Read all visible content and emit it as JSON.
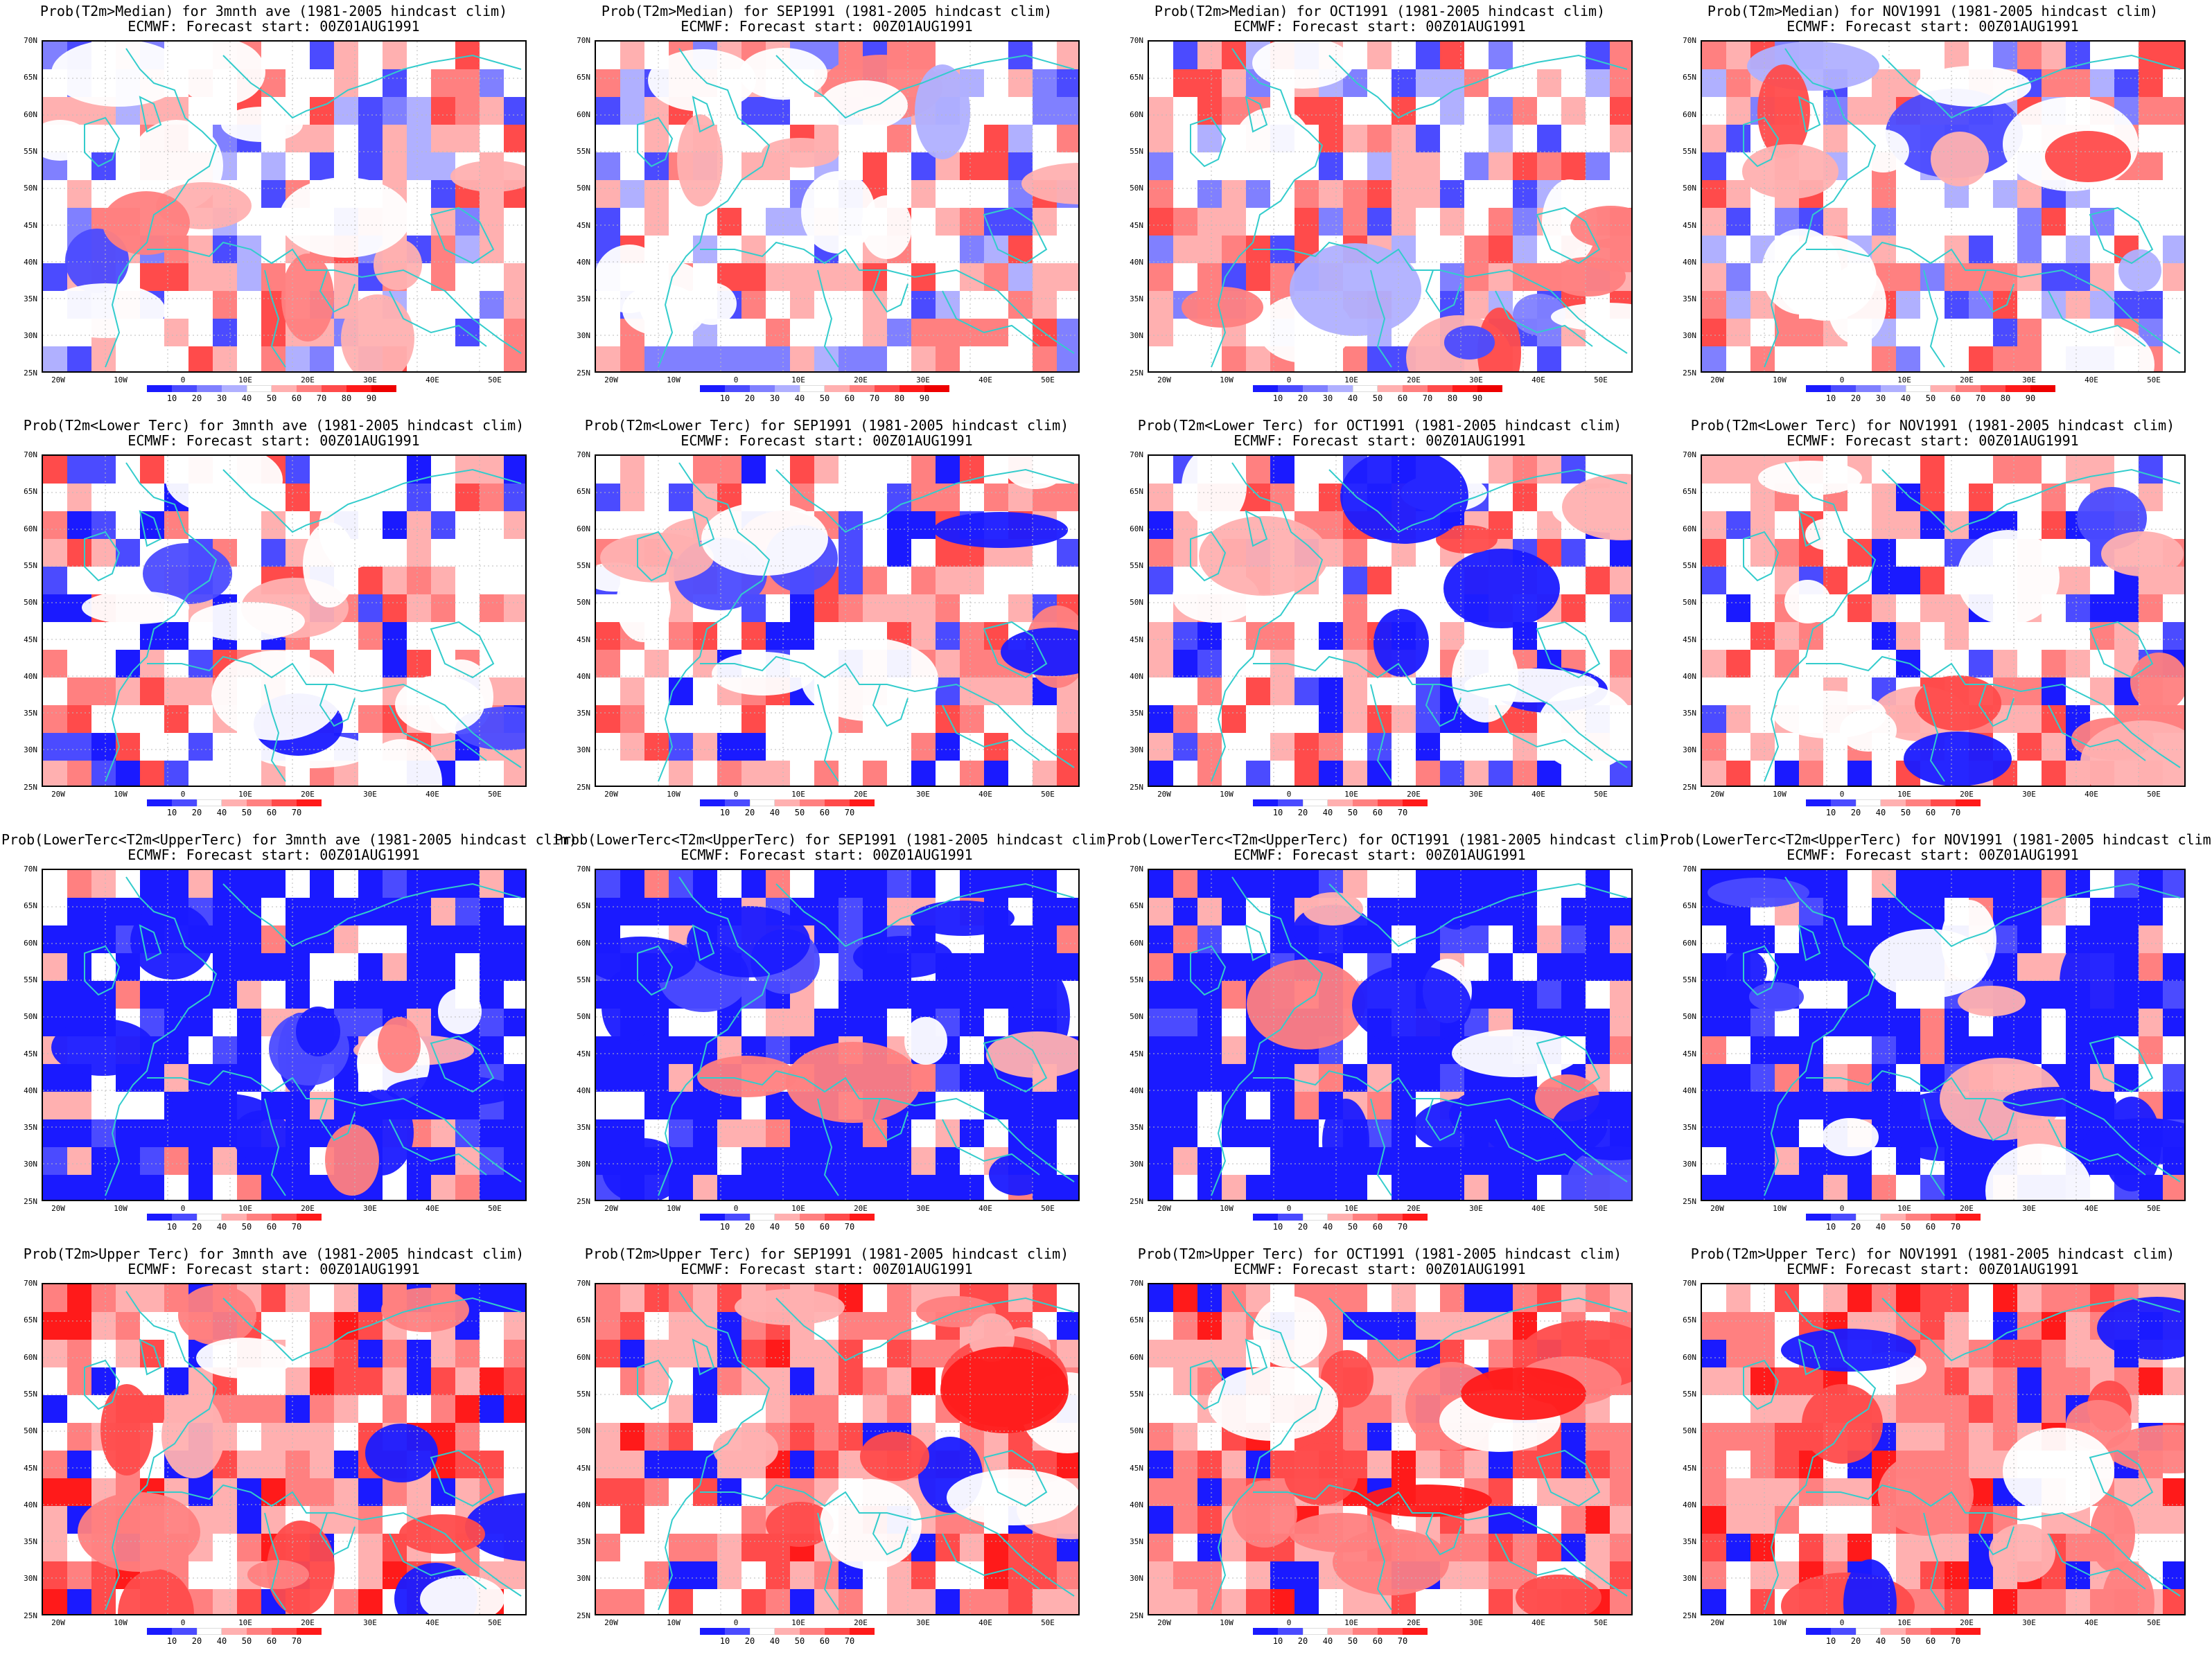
{
  "panels": [
    {
      "t1": "Prob(T2m>Median) for 3mnth ave (1981-2005 hindcast clim)",
      "t2": "ECMWF: Forecast start: 00Z01AUG1991",
      "bar": "median",
      "field": "m0"
    },
    {
      "t1": "Prob(T2m>Median) for SEP1991 (1981-2005 hindcast clim)",
      "t2": "ECMWF: Forecast start: 00Z01AUG1991",
      "bar": "median",
      "field": "m1"
    },
    {
      "t1": "Prob(T2m>Median) for OCT1991 (1981-2005 hindcast clim)",
      "t2": "ECMWF: Forecast start: 00Z01AUG1991",
      "bar": "median",
      "field": "m2"
    },
    {
      "t1": "Prob(T2m>Median) for NOV1991 (1981-2005 hindcast clim)",
      "t2": "ECMWF: Forecast start: 00Z01AUG1991",
      "bar": "median",
      "field": "m3"
    },
    {
      "t1": "Prob(T2m<Lower Terc) for 3mnth ave (1981-2005 hindcast clim)",
      "t2": "ECMWF: Forecast start: 00Z01AUG1991",
      "bar": "terc",
      "field": "l0"
    },
    {
      "t1": "Prob(T2m<Lower Terc) for SEP1991 (1981-2005 hindcast clim)",
      "t2": "ECMWF: Forecast start: 00Z01AUG1991",
      "bar": "terc",
      "field": "l1"
    },
    {
      "t1": "Prob(T2m<Lower Terc) for OCT1991 (1981-2005 hindcast clim)",
      "t2": "ECMWF: Forecast start: 00Z01AUG1991",
      "bar": "terc",
      "field": "l2"
    },
    {
      "t1": "Prob(T2m<Lower Terc) for NOV1991 (1981-2005 hindcast clim)",
      "t2": "ECMWF: Forecast start: 00Z01AUG1991",
      "bar": "terc",
      "field": "l3"
    },
    {
      "t1": "Prob(LowerTerc<T2m<UpperTerc) for 3mnth ave (1981-2005 hindcast clim)",
      "t2": "ECMWF: Forecast start: 00Z01AUG1991",
      "bar": "terc",
      "field": "c0"
    },
    {
      "t1": "Prob(LowerTerc<T2m<UpperTerc) for SEP1991 (1981-2005 hindcast clim)",
      "t2": "ECMWF: Forecast start: 00Z01AUG1991",
      "bar": "terc",
      "field": "c1"
    },
    {
      "t1": "Prob(LowerTerc<T2m<UpperTerc) for OCT1991 (1981-2005 hindcast clim)",
      "t2": "ECMWF: Forecast start: 00Z01AUG1991",
      "bar": "terc",
      "field": "c2"
    },
    {
      "t1": "Prob(LowerTerc<T2m<UpperTerc) for NOV1991 (1981-2005 hindcast clim)",
      "t2": "ECMWF: Forecast start: 00Z01AUG1991",
      "bar": "terc",
      "field": "c3"
    },
    {
      "t1": "Prob(T2m>Upper Terc) for 3mnth ave (1981-2005 hindcast clim)",
      "t2": "ECMWF: Forecast start: 00Z01AUG1991",
      "bar": "terc",
      "field": "u0"
    },
    {
      "t1": "Prob(T2m>Upper Terc) for SEP1991 (1981-2005 hindcast clim)",
      "t2": "ECMWF: Forecast start: 00Z01AUG1991",
      "bar": "terc",
      "field": "u1"
    },
    {
      "t1": "Prob(T2m>Upper Terc) for OCT1991 (1981-2005 hindcast clim)",
      "t2": "ECMWF: Forecast start: 00Z01AUG1991",
      "bar": "terc",
      "field": "u2"
    },
    {
      "t1": "Prob(T2m>Upper Terc) for NOV1991 (1981-2005 hindcast clim)",
      "t2": "ECMWF: Forecast start: 00Z01AUG1991",
      "bar": "terc",
      "field": "u3"
    }
  ],
  "lat_labels": [
    "70N",
    "65N",
    "60N",
    "55N",
    "50N",
    "45N",
    "40N",
    "35N",
    "30N",
    "25N"
  ],
  "lon_labels": [
    "20W",
    "10W",
    "0",
    "10E",
    "20E",
    "30E",
    "40E",
    "50E"
  ],
  "colorbars": {
    "median": {
      "ticks": [
        "10",
        "20",
        "30",
        "40",
        "50",
        "60",
        "70",
        "80",
        "90"
      ],
      "colors": [
        "#1a1aff",
        "#4b4bff",
        "#8080ff",
        "#b0b0ff",
        "#ffffff",
        "#ffb0b0",
        "#ff8080",
        "#ff4b4b",
        "#ff1a1a",
        "#ee0000"
      ]
    },
    "terc": {
      "ticks": [
        "10",
        "20",
        "40",
        "50",
        "60",
        "70"
      ],
      "colors": [
        "#1a1aff",
        "#4b4bff",
        "#ffffff",
        "#ffb0b0",
        "#ff8080",
        "#ff4b4b",
        "#ff1a1a"
      ]
    }
  },
  "colors": {
    "coast": "#33cccc",
    "grid": "#bbbbbb",
    "border": "#000000"
  }
}
